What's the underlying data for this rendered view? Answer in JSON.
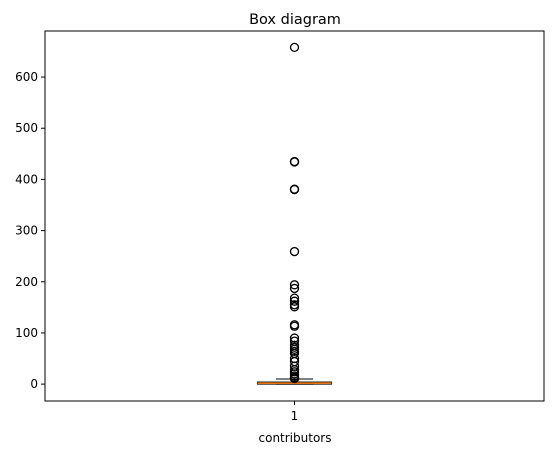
{
  "chart_data": {
    "type": "box",
    "title": "Box diagram",
    "xlabel": "contributors",
    "ylabel": "",
    "categories": [
      "1"
    ],
    "ylim": [
      -33,
      690
    ],
    "yticks": [
      0,
      100,
      200,
      300,
      400,
      500,
      600
    ],
    "grid": false,
    "box": {
      "q1": 0,
      "median": 2,
      "q3": 4,
      "whisker_low": 0,
      "whisker_high": 10
    },
    "outliers": [
      658,
      435,
      434,
      381,
      380,
      259,
      194,
      187,
      168,
      162,
      155,
      151,
      116,
      113,
      90,
      84,
      76,
      72,
      68,
      64,
      60,
      50,
      44,
      35,
      28,
      24,
      20,
      16,
      13,
      11
    ],
    "colors": {
      "box": "#000000",
      "median": "#ff7f0e",
      "outlier": "#000000"
    }
  }
}
